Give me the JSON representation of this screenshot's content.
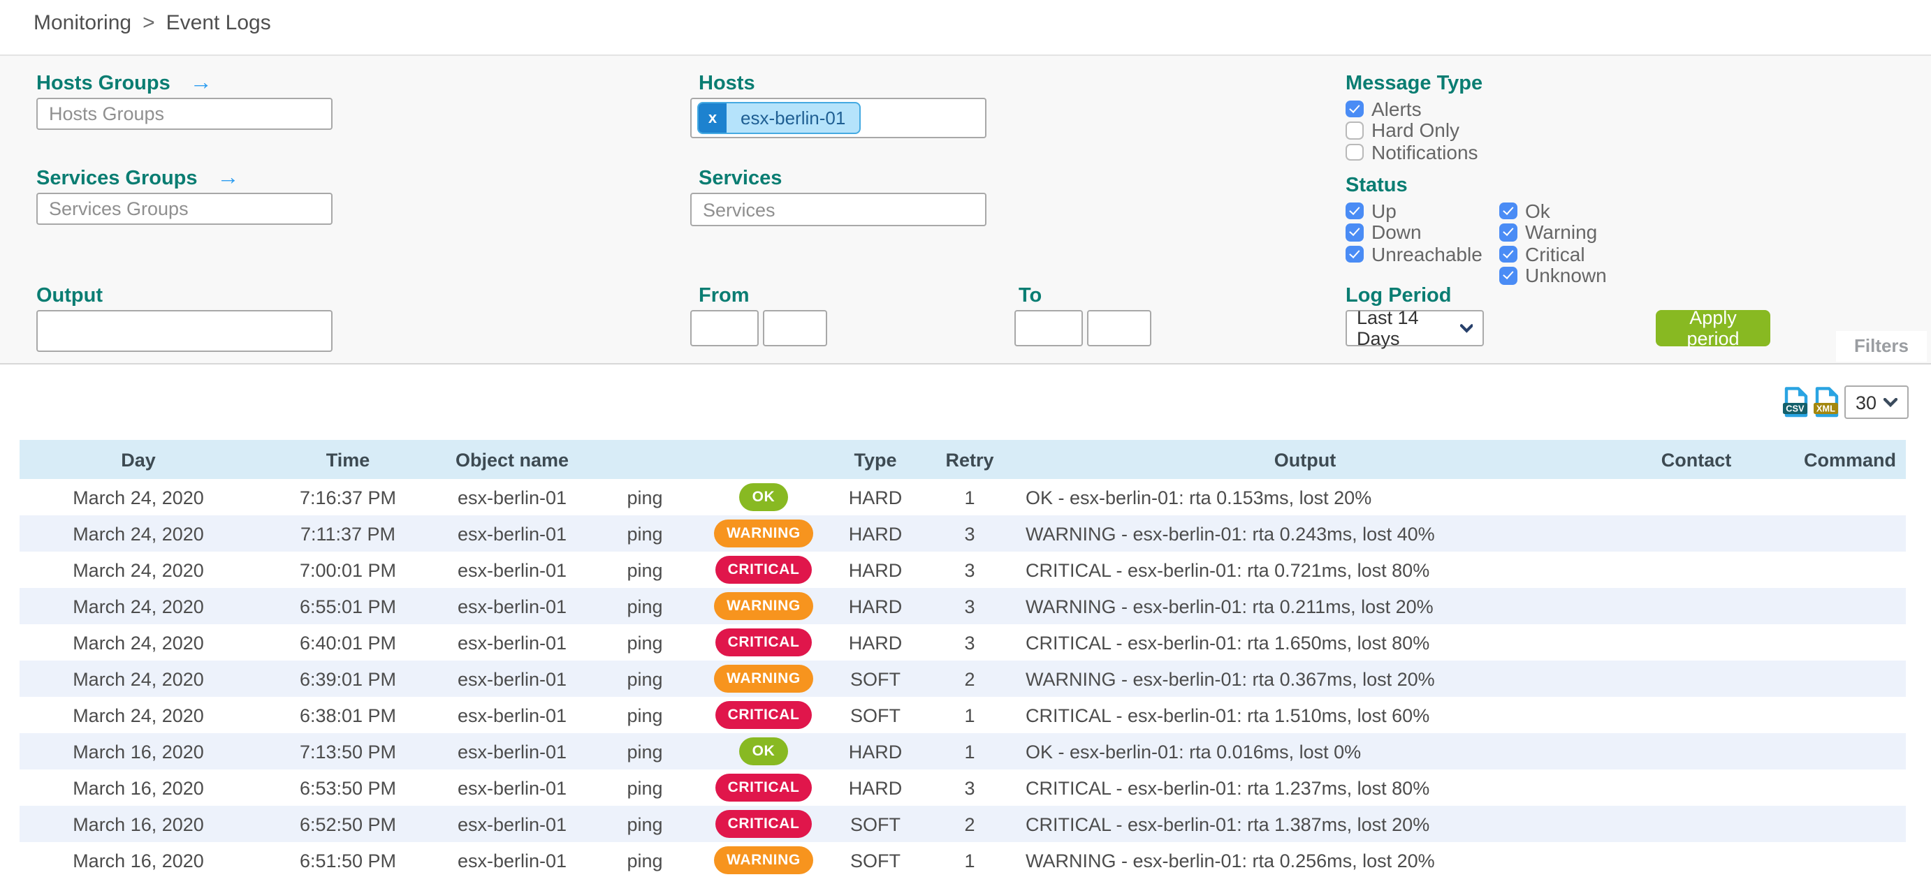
{
  "breadcrumb": {
    "items": [
      "Monitoring",
      "Event Logs"
    ],
    "separator": ">"
  },
  "filters": {
    "hosts_groups": {
      "label": "Hosts Groups",
      "placeholder": "Hosts Groups"
    },
    "services_groups": {
      "label": "Services Groups",
      "placeholder": "Services Groups"
    },
    "hosts": {
      "label": "Hosts",
      "chips": [
        {
          "text": "esx-berlin-01",
          "remove_icon": "x"
        }
      ]
    },
    "services": {
      "label": "Services",
      "placeholder": "Services"
    },
    "output": {
      "label": "Output",
      "value": ""
    },
    "from": {
      "label": "From",
      "date_value": "",
      "time_value": ""
    },
    "to": {
      "label": "To",
      "date_value": "",
      "time_value": ""
    },
    "message_type": {
      "label": "Message Type",
      "options": [
        {
          "label": "Alerts",
          "checked": true
        },
        {
          "label": "Hard Only",
          "checked": false
        },
        {
          "label": "Notifications",
          "checked": false
        }
      ]
    },
    "status": {
      "label": "Status",
      "col1": [
        {
          "label": "Up",
          "checked": true
        },
        {
          "label": "Down",
          "checked": true
        },
        {
          "label": "Unreachable",
          "checked": true
        }
      ],
      "col2": [
        {
          "label": "Ok",
          "checked": true
        },
        {
          "label": "Warning",
          "checked": true
        },
        {
          "label": "Critical",
          "checked": true
        },
        {
          "label": "Unknown",
          "checked": true
        }
      ]
    },
    "log_period": {
      "label": "Log Period",
      "selected": "Last 14 Days"
    },
    "apply_button": "Apply period",
    "filters_tab": "Filters"
  },
  "toolbar": {
    "csv_label": "CSV",
    "xml_label": "XML",
    "page_size": "30"
  },
  "table": {
    "columns": [
      "Day",
      "Time",
      "Object name",
      "",
      "",
      "Type",
      "Retry",
      "Output",
      "Contact",
      "Command"
    ],
    "rows": [
      {
        "day": "March 24, 2020",
        "time": "7:16:37 PM",
        "object": "esx-berlin-01",
        "service": "ping",
        "status": "OK",
        "type": "HARD",
        "retry": "1",
        "output": "OK - esx-berlin-01: rta 0.153ms, lost 20%",
        "contact": "",
        "command": ""
      },
      {
        "day": "March 24, 2020",
        "time": "7:11:37 PM",
        "object": "esx-berlin-01",
        "service": "ping",
        "status": "WARNING",
        "type": "HARD",
        "retry": "3",
        "output": "WARNING - esx-berlin-01: rta 0.243ms, lost 40%",
        "contact": "",
        "command": ""
      },
      {
        "day": "March 24, 2020",
        "time": "7:00:01 PM",
        "object": "esx-berlin-01",
        "service": "ping",
        "status": "CRITICAL",
        "type": "HARD",
        "retry": "3",
        "output": "CRITICAL - esx-berlin-01: rta 0.721ms, lost 80%",
        "contact": "",
        "command": ""
      },
      {
        "day": "March 24, 2020",
        "time": "6:55:01 PM",
        "object": "esx-berlin-01",
        "service": "ping",
        "status": "WARNING",
        "type": "HARD",
        "retry": "3",
        "output": "WARNING - esx-berlin-01: rta 0.211ms, lost 20%",
        "contact": "",
        "command": ""
      },
      {
        "day": "March 24, 2020",
        "time": "6:40:01 PM",
        "object": "esx-berlin-01",
        "service": "ping",
        "status": "CRITICAL",
        "type": "HARD",
        "retry": "3",
        "output": "CRITICAL - esx-berlin-01: rta 1.650ms, lost 80%",
        "contact": "",
        "command": ""
      },
      {
        "day": "March 24, 2020",
        "time": "6:39:01 PM",
        "object": "esx-berlin-01",
        "service": "ping",
        "status": "WARNING",
        "type": "SOFT",
        "retry": "2",
        "output": "WARNING - esx-berlin-01: rta 0.367ms, lost 20%",
        "contact": "",
        "command": ""
      },
      {
        "day": "March 24, 2020",
        "time": "6:38:01 PM",
        "object": "esx-berlin-01",
        "service": "ping",
        "status": "CRITICAL",
        "type": "SOFT",
        "retry": "1",
        "output": "CRITICAL - esx-berlin-01: rta 1.510ms, lost 60%",
        "contact": "",
        "command": ""
      },
      {
        "day": "March 16, 2020",
        "time": "7:13:50 PM",
        "object": "esx-berlin-01",
        "service": "ping",
        "status": "OK",
        "type": "HARD",
        "retry": "1",
        "output": "OK - esx-berlin-01: rta 0.016ms, lost 0%",
        "contact": "",
        "command": ""
      },
      {
        "day": "March 16, 2020",
        "time": "6:53:50 PM",
        "object": "esx-berlin-01",
        "service": "ping",
        "status": "CRITICAL",
        "type": "HARD",
        "retry": "3",
        "output": "CRITICAL - esx-berlin-01: rta 1.237ms, lost 80%",
        "contact": "",
        "command": ""
      },
      {
        "day": "March 16, 2020",
        "time": "6:52:50 PM",
        "object": "esx-berlin-01",
        "service": "ping",
        "status": "CRITICAL",
        "type": "SOFT",
        "retry": "2",
        "output": "CRITICAL - esx-berlin-01: rta 1.387ms, lost 20%",
        "contact": "",
        "command": ""
      },
      {
        "day": "March 16, 2020",
        "time": "6:51:50 PM",
        "object": "esx-berlin-01",
        "service": "ping",
        "status": "WARNING",
        "type": "SOFT",
        "retry": "1",
        "output": "WARNING - esx-berlin-01: rta 0.256ms, lost 20%",
        "contact": "",
        "command": ""
      }
    ]
  },
  "colors": {
    "teal": "#0a7d72",
    "link": "#2e9df0",
    "checkbox": "#4a8cf5",
    "green": "#88b922",
    "ok": "#88b922",
    "warning": "#f7941e",
    "critical": "#e0164b",
    "head-bg": "#d8ecf7",
    "row-alt": "#edf2fb",
    "chip-bg": "#b5e3fb",
    "chip-border": "#45aae2",
    "chip-x": "#1d82cf",
    "chip-text": "#1f5f93"
  }
}
